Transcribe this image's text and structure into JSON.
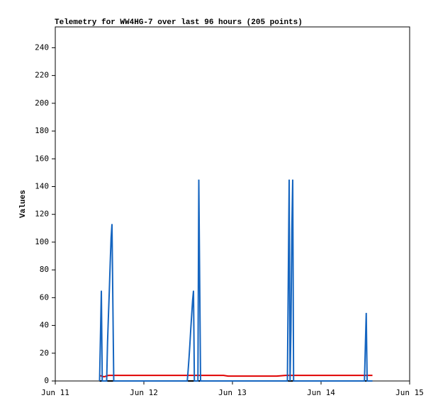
{
  "chart_data": {
    "type": "line",
    "title": "Telemetry for WW4HG-7 over last 96 hours (205 points)",
    "y_label": "Values",
    "xlim": [
      0,
      4
    ],
    "xticks": [
      {
        "value": 0,
        "label": "Jun 11"
      },
      {
        "value": 1,
        "label": "Jun 12"
      },
      {
        "value": 2,
        "label": "Jun 13"
      },
      {
        "value": 3,
        "label": "Jun 14"
      },
      {
        "value": 4,
        "label": "Jun 15"
      }
    ],
    "ylim": [
      0,
      255
    ],
    "yticks": [
      0,
      20,
      40,
      60,
      80,
      100,
      120,
      140,
      160,
      180,
      200,
      220,
      240
    ],
    "series": [
      {
        "color": "#1565c0",
        "x": [
          0.5,
          0.52,
          0.53,
          0.58,
          0.59,
          0.6,
          0.61,
          0.62,
          0.63,
          0.64,
          0.65,
          0.66,
          1.49,
          1.5,
          1.51,
          1.52,
          1.53,
          1.54,
          1.55,
          1.56,
          1.57,
          1.61,
          1.62,
          1.63,
          1.64,
          2.62,
          2.63,
          2.64,
          2.65,
          2.66,
          2.67,
          2.68,
          2.69,
          3.49,
          3.5,
          3.51,
          3.52,
          3.58
        ],
        "values": [
          0,
          65,
          0,
          0,
          28,
          47,
          65,
          85,
          103,
          113,
          56,
          0,
          0,
          8,
          17,
          27,
          38,
          48,
          58,
          65,
          0,
          0,
          145,
          72,
          0,
          0,
          72,
          145,
          0,
          37,
          108,
          145,
          0,
          0,
          25,
          49,
          0,
          0
        ]
      },
      {
        "color": "#e00000",
        "x": [
          0.5,
          0.55,
          0.6,
          1.9,
          1.95,
          2.5,
          2.6,
          3.58
        ],
        "values": [
          4,
          3,
          4,
          4,
          3.5,
          3.5,
          4,
          4
        ]
      },
      {
        "color": "#000000",
        "x": [
          0.5,
          3.58
        ],
        "values": [
          0,
          0
        ]
      }
    ]
  }
}
